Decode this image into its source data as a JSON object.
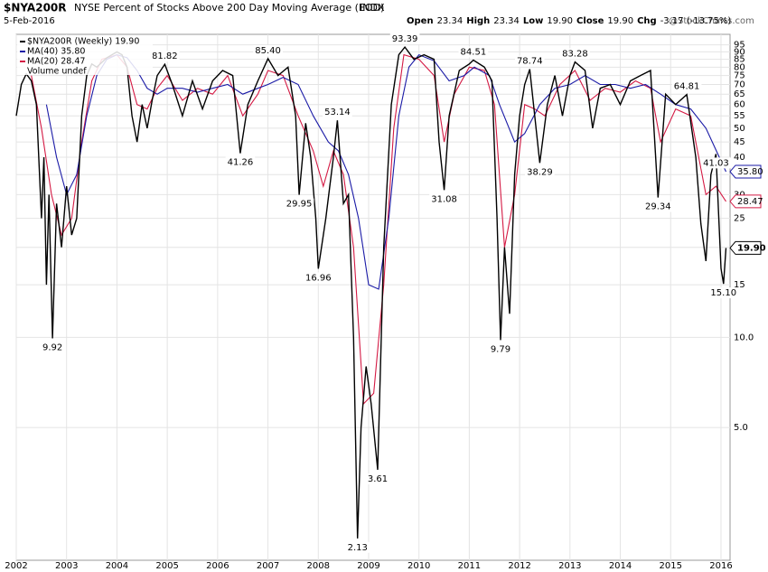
{
  "chart_data": {
    "type": "line",
    "symbol": "$NYA200R",
    "title": "NYSE Percent of Stocks Above 200 Day Moving Average (EOD)",
    "exchange": "INDX",
    "date": "5-Feb-2016",
    "watermark": "@StockCharts.com",
    "quote": [
      "Open",
      "23.34",
      "High",
      "23.34",
      "Low",
      "19.90",
      "Close",
      "19.90",
      "Chg",
      "-3.17 (-13.75%)"
    ],
    "log_scale": true,
    "grid": true,
    "xlim": [
      2002.0,
      2016.18
    ],
    "ylim": [
      1.8,
      103
    ],
    "xticks": [
      2002,
      2003,
      2004,
      2005,
      2006,
      2007,
      2008,
      2009,
      2010,
      2011,
      2012,
      2013,
      2014,
      2015,
      2016
    ],
    "yticks": [
      95,
      90,
      85,
      80,
      75,
      70,
      65,
      60,
      55,
      50,
      45,
      40,
      35,
      30,
      25,
      20,
      15,
      {
        "value": 10,
        "label": "10.0"
      },
      {
        "value": 5,
        "label": "5.0"
      }
    ],
    "legend_extra": "Volume undef",
    "series": [
      {
        "name": "$NYA200R (Weekly) 19.90",
        "color": "#000000",
        "x": [
          2002.0,
          2002.1,
          2002.2,
          2002.3,
          2002.4,
          2002.5,
          2002.55,
          2002.6,
          2002.65,
          2002.72,
          2002.8,
          2002.9,
          2003.0,
          2003.1,
          2003.2,
          2003.3,
          2003.4,
          2003.5,
          2003.6,
          2003.8,
          2004.0,
          2004.1,
          2004.2,
          2004.3,
          2004.4,
          2004.5,
          2004.6,
          2004.7,
          2004.8,
          2004.95,
          2005.1,
          2005.3,
          2005.5,
          2005.7,
          2005.9,
          2006.1,
          2006.3,
          2006.45,
          2006.6,
          2006.8,
          2007.0,
          2007.2,
          2007.4,
          2007.55,
          2007.62,
          2007.75,
          2007.85,
          2007.95,
          2008.0,
          2008.15,
          2008.3,
          2008.38,
          2008.5,
          2008.6,
          2008.7,
          2008.78,
          2008.85,
          2008.95,
          2009.05,
          2009.18,
          2009.3,
          2009.45,
          2009.6,
          2009.72,
          2009.9,
          2010.1,
          2010.3,
          2010.4,
          2010.5,
          2010.6,
          2010.8,
          2011.0,
          2011.08,
          2011.3,
          2011.45,
          2011.55,
          2011.62,
          2011.7,
          2011.8,
          2011.9,
          2012.0,
          2012.1,
          2012.2,
          2012.4,
          2012.55,
          2012.7,
          2012.85,
          2013.0,
          2013.1,
          2013.3,
          2013.45,
          2013.6,
          2013.8,
          2014.0,
          2014.2,
          2014.4,
          2014.6,
          2014.75,
          2014.9,
          2015.1,
          2015.32,
          2015.5,
          2015.6,
          2015.7,
          2015.8,
          2015.9,
          2016.0,
          2016.05,
          2016.1
        ],
        "values": [
          55,
          70,
          76,
          72,
          60,
          25,
          40,
          15,
          30,
          9.92,
          28,
          20,
          32,
          22,
          25,
          55,
          75,
          82,
          80,
          86,
          90,
          88,
          80,
          55,
          45,
          60,
          50,
          62,
          75,
          81.82,
          70,
          55,
          72,
          58,
          72,
          78,
          75,
          41.26,
          60,
          72,
          85.4,
          75,
          80,
          55,
          29.95,
          52,
          40,
          25,
          16.96,
          25,
          40,
          53.14,
          28,
          30,
          10,
          2.13,
          5,
          8,
          6,
          3.61,
          20,
          60,
          88,
          93.39,
          85,
          88,
          85,
          45,
          31.08,
          55,
          78,
          82,
          84.51,
          80,
          72,
          25,
          9.79,
          20,
          12,
          35,
          55,
          70,
          78.74,
          38.29,
          60,
          75,
          55,
          75,
          83.28,
          78,
          50,
          68,
          70,
          60,
          72,
          75,
          78,
          29.34,
          65,
          60,
          64.81,
          40,
          24,
          18,
          35,
          41.03,
          17,
          15.1,
          19.9
        ]
      },
      {
        "name": "MA(40) 35.80",
        "color": "#1a1aa6",
        "x": [
          2002.6,
          2002.8,
          2003.0,
          2003.2,
          2003.4,
          2003.6,
          2003.8,
          2004.0,
          2004.2,
          2004.4,
          2004.6,
          2004.8,
          2005.0,
          2005.3,
          2005.6,
          2005.9,
          2006.2,
          2006.5,
          2006.8,
          2007.0,
          2007.3,
          2007.6,
          2007.9,
          2008.2,
          2008.4,
          2008.6,
          2008.8,
          2009.0,
          2009.2,
          2009.4,
          2009.6,
          2009.8,
          2010.0,
          2010.3,
          2010.6,
          2010.9,
          2011.1,
          2011.4,
          2011.6,
          2011.9,
          2012.1,
          2012.4,
          2012.7,
          2013.0,
          2013.3,
          2013.6,
          2013.9,
          2014.2,
          2014.5,
          2014.8,
          2015.1,
          2015.4,
          2015.7,
          2016.1
        ],
        "values": [
          60,
          40,
          30,
          35,
          55,
          75,
          85,
          88,
          86,
          78,
          68,
          65,
          68,
          68,
          66,
          68,
          70,
          65,
          68,
          70,
          74,
          70,
          55,
          45,
          42,
          35,
          25,
          15,
          14.5,
          25,
          55,
          80,
          88,
          84,
          72,
          75,
          80,
          75,
          60,
          45,
          48,
          60,
          68,
          70,
          75,
          70,
          70,
          68,
          70,
          65,
          60,
          58,
          50,
          35.8
        ]
      },
      {
        "name": "MA(20) 28.47",
        "color": "#d41a44",
        "x": [
          2002.3,
          2002.5,
          2002.7,
          2002.9,
          2003.1,
          2003.3,
          2003.5,
          2003.7,
          2004.0,
          2004.2,
          2004.4,
          2004.6,
          2004.8,
          2005.0,
          2005.3,
          2005.6,
          2005.9,
          2006.2,
          2006.5,
          2006.8,
          2007.0,
          2007.3,
          2007.6,
          2007.9,
          2008.1,
          2008.3,
          2008.5,
          2008.7,
          2008.9,
          2009.1,
          2009.3,
          2009.5,
          2009.7,
          2010.0,
          2010.3,
          2010.5,
          2010.7,
          2011.0,
          2011.3,
          2011.5,
          2011.7,
          2011.9,
          2012.1,
          2012.3,
          2012.5,
          2012.8,
          2013.1,
          2013.4,
          2013.7,
          2014.0,
          2014.3,
          2014.6,
          2014.8,
          2015.1,
          2015.4,
          2015.7,
          2015.9,
          2016.1
        ],
        "values": [
          75,
          50,
          30,
          22,
          25,
          45,
          72,
          85,
          88,
          80,
          60,
          58,
          68,
          75,
          62,
          68,
          65,
          75,
          55,
          65,
          78,
          75,
          55,
          42,
          32,
          42,
          35,
          20,
          6,
          6.5,
          15,
          50,
          88,
          85,
          75,
          45,
          65,
          80,
          78,
          60,
          20,
          30,
          60,
          58,
          55,
          70,
          78,
          62,
          68,
          66,
          72,
          68,
          45,
          58,
          55,
          30,
          32,
          28.47
        ]
      }
    ],
    "last_values": [
      {
        "value": 35.8,
        "label": "35.80",
        "color": "#1a1aa6"
      },
      {
        "value": 28.47,
        "label": "28.47",
        "color": "#d41a44"
      },
      {
        "value": 19.9,
        "label": "19.90",
        "color": "#000000"
      }
    ],
    "annotations": [
      {
        "x": 2002.72,
        "value": 9.92,
        "label": "9.92"
      },
      {
        "x": 2004.95,
        "value": 81.82,
        "label": "81.82"
      },
      {
        "x": 2006.45,
        "value": 41.26,
        "label": "41.26"
      },
      {
        "x": 2007.0,
        "value": 85.4,
        "label": "85.40"
      },
      {
        "x": 2007.62,
        "value": 29.95,
        "label": "29.95"
      },
      {
        "x": 2008.0,
        "value": 16.96,
        "label": "16.96"
      },
      {
        "x": 2008.38,
        "value": 53.14,
        "label": "53.14"
      },
      {
        "x": 2008.78,
        "value": 2.13,
        "label": "2.13"
      },
      {
        "x": 2009.18,
        "value": 3.61,
        "label": "3.61"
      },
      {
        "x": 2009.72,
        "value": 93.39,
        "label": "93.39"
      },
      {
        "x": 2010.5,
        "value": 31.08,
        "label": "31.08"
      },
      {
        "x": 2011.08,
        "value": 84.51,
        "label": "84.51"
      },
      {
        "x": 2011.62,
        "value": 9.79,
        "label": "9.79"
      },
      {
        "x": 2012.2,
        "value": 78.74,
        "label": "78.74"
      },
      {
        "x": 2012.4,
        "value": 38.29,
        "label": "38.29"
      },
      {
        "x": 2013.1,
        "value": 83.28,
        "label": "83.28"
      },
      {
        "x": 2014.75,
        "value": 29.34,
        "label": "29.34"
      },
      {
        "x": 2015.32,
        "value": 64.81,
        "label": "64.81"
      },
      {
        "x": 2015.9,
        "value": 41.03,
        "label": "41.03"
      },
      {
        "x": 2016.05,
        "value": 15.1,
        "label": "15.10"
      }
    ]
  }
}
